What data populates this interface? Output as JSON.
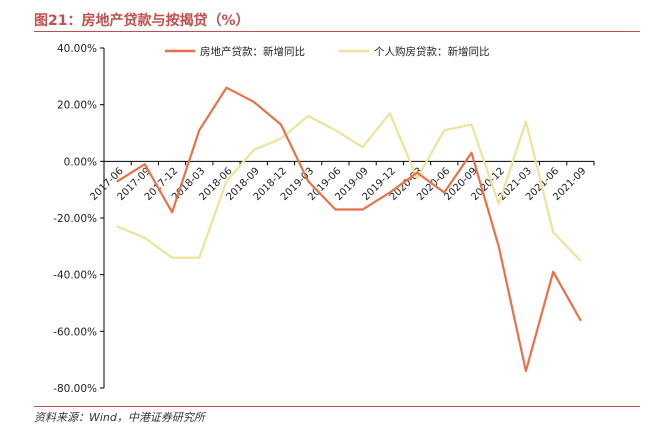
{
  "figure": {
    "title": "图21：房地产贷款与按揭贷（%）",
    "source": "资料来源：Wind，中港证券研究所"
  },
  "chart_data": {
    "type": "line",
    "x": [
      "2017-06",
      "2017-09",
      "2017-12",
      "2018-03",
      "2018-06",
      "2018-09",
      "2018-12",
      "2019-03",
      "2019-06",
      "2019-09",
      "2019-12",
      "2020-03",
      "2020-06",
      "2020-09",
      "2020-12",
      "2021-03",
      "2021-06",
      "2021-09"
    ],
    "series": [
      {
        "name": "房地产贷款：新增同比",
        "color": "#e8714a",
        "values": [
          -7,
          -1,
          -18,
          11,
          26,
          21,
          13,
          -7,
          -17,
          -17,
          -11,
          -4,
          -11,
          3,
          -30,
          -74,
          -39,
          -56
        ]
      },
      {
        "name": "个人购房贷款：新增同比",
        "color": "#ede39a",
        "values": [
          -23,
          -27,
          -34,
          -34,
          -7,
          4,
          8,
          16,
          11,
          5,
          17,
          -6,
          11,
          13,
          -15,
          14,
          -25,
          -35
        ]
      }
    ],
    "yticks": [
      "40.00%",
      "20.00%",
      "0.00%",
      "-20.00%",
      "-40.00%",
      "-60.00%",
      "-80.00%"
    ],
    "ylim": [
      -80,
      40
    ],
    "legend_position": "top",
    "grid": false
  }
}
